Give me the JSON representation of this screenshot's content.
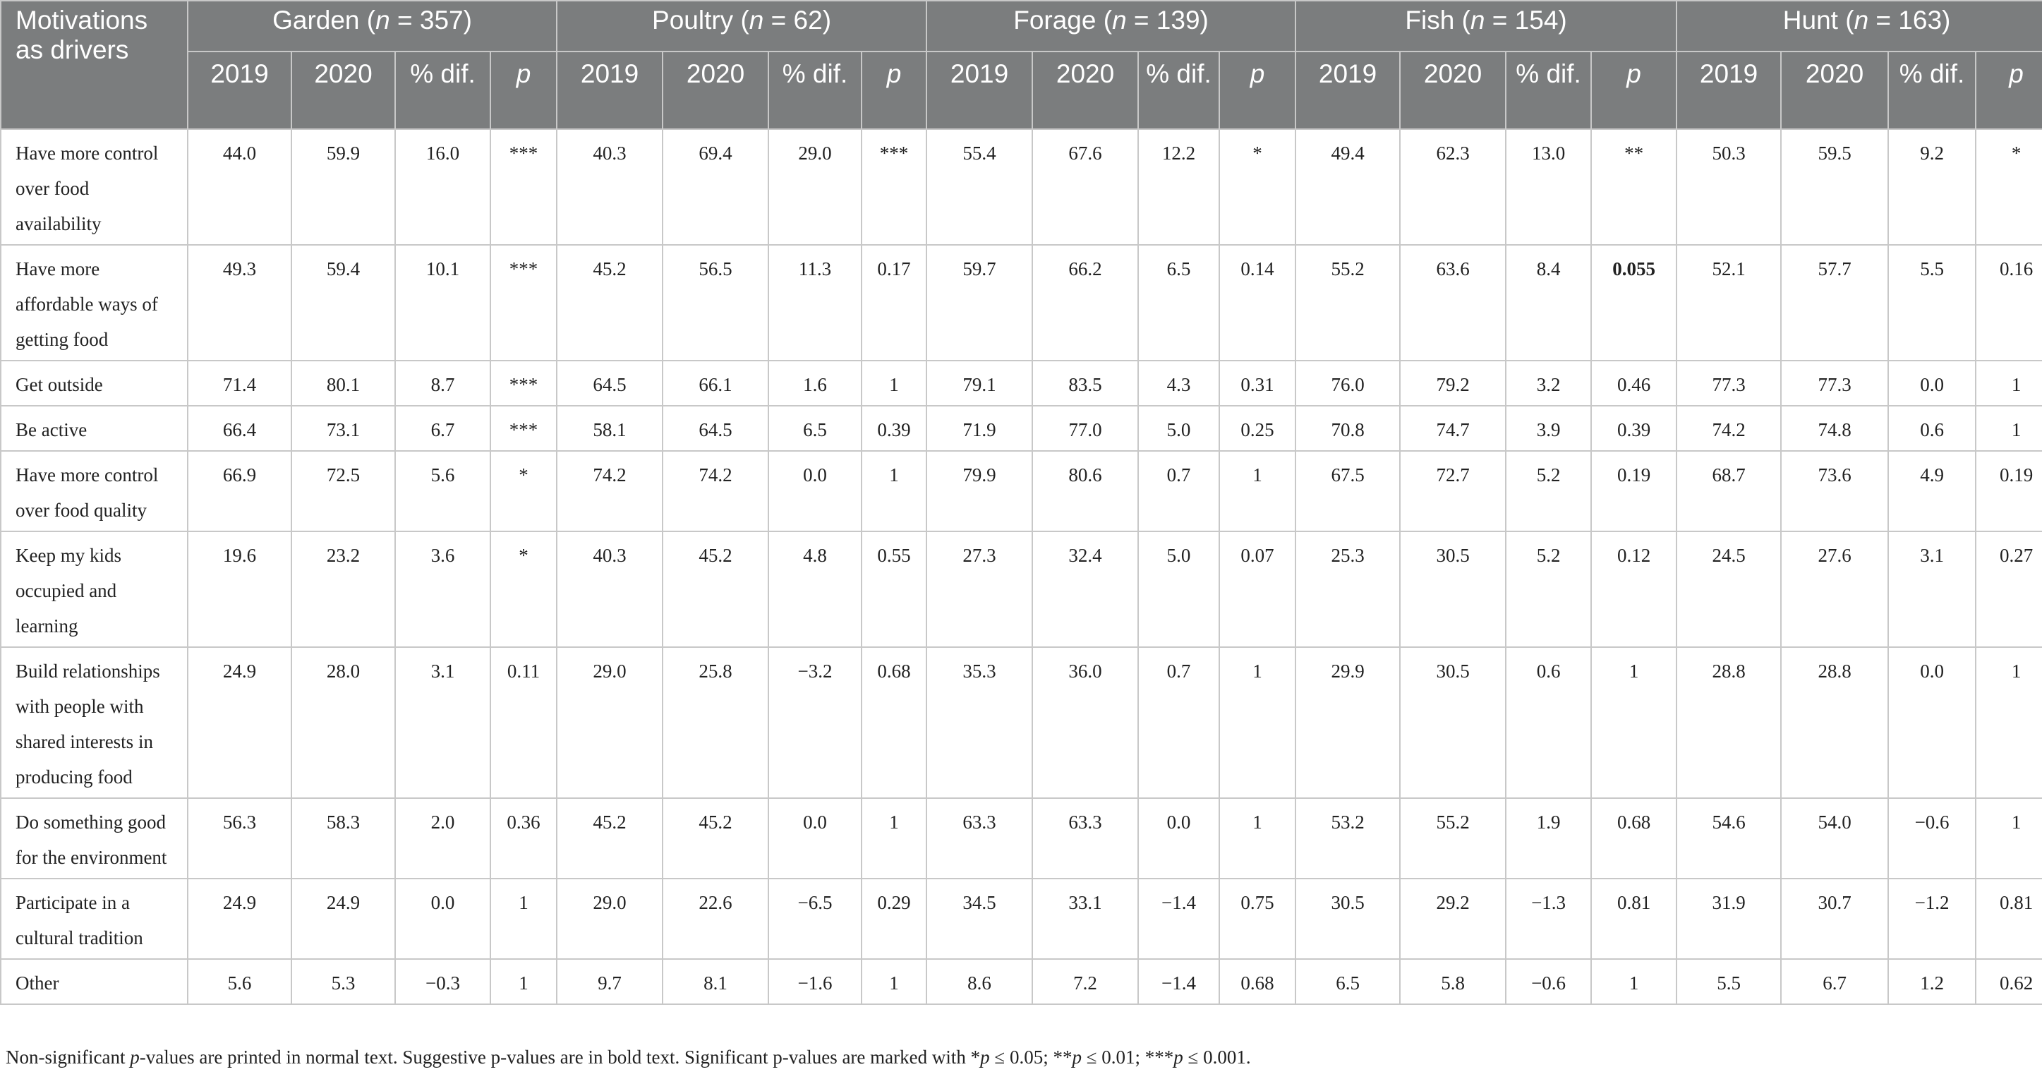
{
  "header": {
    "corner_label": "Motivations as drivers",
    "groups": [
      {
        "name": "Garden",
        "n_label": "n",
        "n_value": " = 357"
      },
      {
        "name": "Poultry",
        "n_label": "n",
        "n_value": " = 62"
      },
      {
        "name": "Forage",
        "n_label": "n",
        "n_value": " = 139"
      },
      {
        "name": "Fish",
        "n_label": "n",
        "n_value": " = 154"
      },
      {
        "name": "Hunt",
        "n_label": "n",
        "n_value": " = 163"
      }
    ],
    "subcolumns": [
      "2019",
      "2020",
      "% dif.",
      "p"
    ]
  },
  "rows": [
    {
      "label": "Have more control over food availability",
      "values": [
        "44.0",
        "59.9",
        "16.0",
        "***",
        "40.3",
        "69.4",
        "29.0",
        "***",
        "55.4",
        "67.6",
        "12.2",
        "*",
        "49.4",
        "62.3",
        "13.0",
        "**",
        "50.3",
        "59.5",
        "9.2",
        "*"
      ]
    },
    {
      "label": "Have more affordable ways of getting food",
      "values": [
        "49.3",
        "59.4",
        "10.1",
        "***",
        "45.2",
        "56.5",
        "11.3",
        "0.17",
        "59.7",
        "66.2",
        "6.5",
        "0.14",
        "55.2",
        "63.6",
        "8.4",
        "0.055",
        "52.1",
        "57.7",
        "5.5",
        "0.16"
      ]
    },
    {
      "label": "Get outside",
      "values": [
        "71.4",
        "80.1",
        "8.7",
        "***",
        "64.5",
        "66.1",
        "1.6",
        "1",
        "79.1",
        "83.5",
        "4.3",
        "0.31",
        "76.0",
        "79.2",
        "3.2",
        "0.46",
        "77.3",
        "77.3",
        "0.0",
        "1"
      ]
    },
    {
      "label": "Be active",
      "values": [
        "66.4",
        "73.1",
        "6.7",
        "***",
        "58.1",
        "64.5",
        "6.5",
        "0.39",
        "71.9",
        "77.0",
        "5.0",
        "0.25",
        "70.8",
        "74.7",
        "3.9",
        "0.39",
        "74.2",
        "74.8",
        "0.6",
        "1"
      ]
    },
    {
      "label": "Have more control over food quality",
      "values": [
        "66.9",
        "72.5",
        "5.6",
        "*",
        "74.2",
        "74.2",
        "0.0",
        "1",
        "79.9",
        "80.6",
        "0.7",
        "1",
        "67.5",
        "72.7",
        "5.2",
        "0.19",
        "68.7",
        "73.6",
        "4.9",
        "0.19"
      ]
    },
    {
      "label": "Keep my kids occupied and learning",
      "values": [
        "19.6",
        "23.2",
        "3.6",
        "*",
        "40.3",
        "45.2",
        "4.8",
        "0.55",
        "27.3",
        "32.4",
        "5.0",
        "0.07",
        "25.3",
        "30.5",
        "5.2",
        "0.12",
        "24.5",
        "27.6",
        "3.1",
        "0.27"
      ]
    },
    {
      "label": "Build relationships with people with shared interests in producing food",
      "values": [
        "24.9",
        "28.0",
        "3.1",
        "0.11",
        "29.0",
        "25.8",
        "−3.2",
        "0.68",
        "35.3",
        "36.0",
        "0.7",
        "1",
        "29.9",
        "30.5",
        "0.6",
        "1",
        "28.8",
        "28.8",
        "0.0",
        "1"
      ]
    },
    {
      "label": "Do something good for the environment",
      "values": [
        "56.3",
        "58.3",
        "2.0",
        "0.36",
        "45.2",
        "45.2",
        "0.0",
        "1",
        "63.3",
        "63.3",
        "0.0",
        "1",
        "53.2",
        "55.2",
        "1.9",
        "0.68",
        "54.6",
        "54.0",
        "−0.6",
        "1"
      ]
    },
    {
      "label": "Participate in a cultural tradition",
      "values": [
        "24.9",
        "24.9",
        "0.0",
        "1",
        "29.0",
        "22.6",
        "−6.5",
        "0.29",
        "34.5",
        "33.1",
        "−1.4",
        "0.75",
        "30.5",
        "29.2",
        "−1.3",
        "0.81",
        "31.9",
        "30.7",
        "−1.2",
        "0.81"
      ]
    },
    {
      "label": "Other",
      "values": [
        "5.6",
        "5.3",
        "−0.3",
        "1",
        "9.7",
        "8.1",
        "−1.6",
        "1",
        "8.6",
        "7.2",
        "−1.4",
        "0.68",
        "6.5",
        "5.8",
        "−0.6",
        "1",
        "5.5",
        "6.7",
        "1.2",
        "0.62"
      ]
    }
  ],
  "bold_cells": [
    {
      "row": 1,
      "col": 15
    }
  ],
  "footnote": {
    "t1": "Non-significant ",
    "p": "p",
    "t2": "-values are printed in normal text. Suggestive p-values are in bold text. Significant p-values are marked with *",
    "t3": " ≤ 0.05; **",
    "t4": " ≤ 0.01; ***",
    "t5": " ≤ 0.001."
  }
}
